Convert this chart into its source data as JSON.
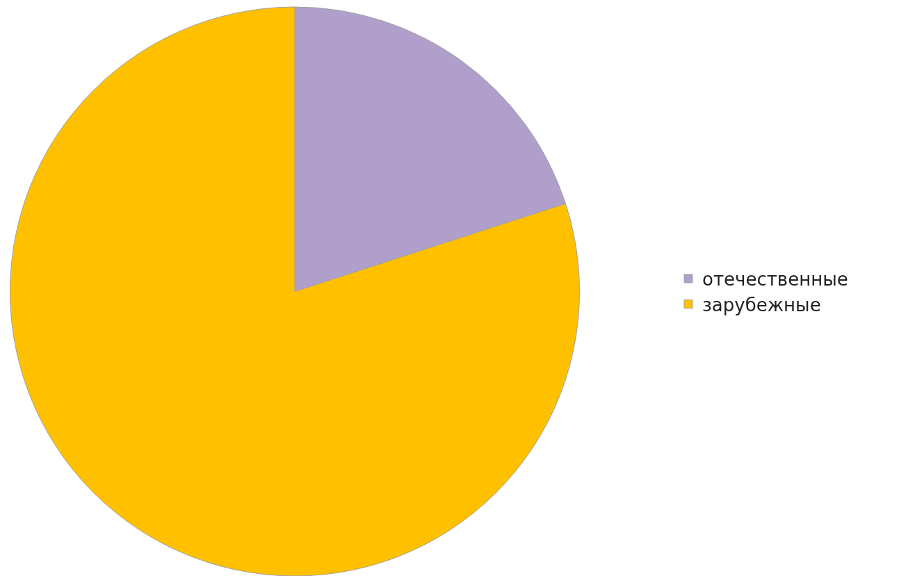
{
  "chart_data": {
    "type": "pie",
    "categories": [
      "отечественные",
      "зарубежные"
    ],
    "values": [
      20,
      80
    ],
    "colors": [
      "#b09fca",
      "#ffc000"
    ],
    "legend": "right"
  }
}
